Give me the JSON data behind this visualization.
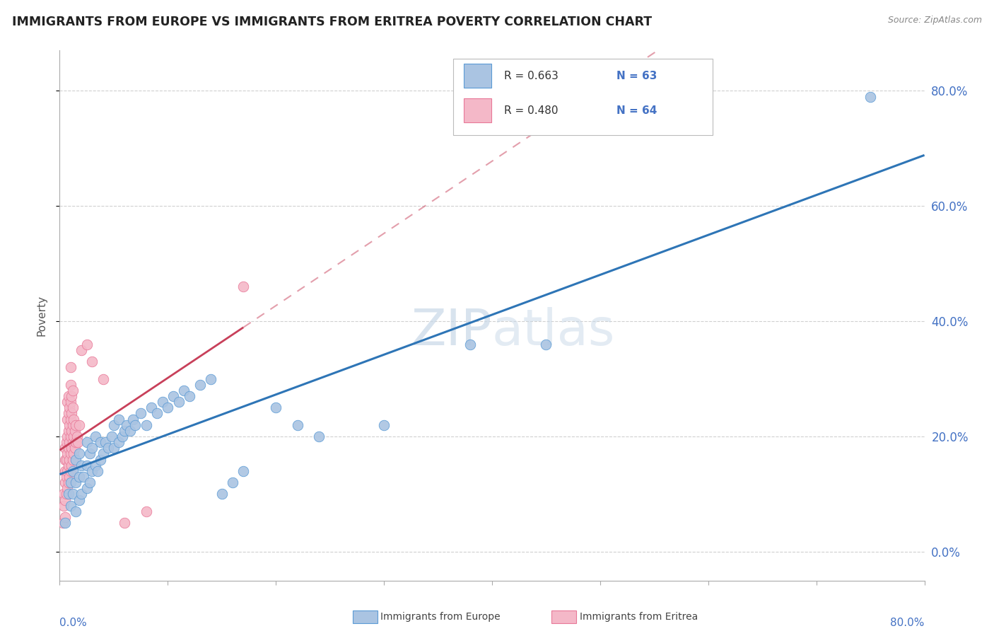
{
  "title": "IMMIGRANTS FROM EUROPE VS IMMIGRANTS FROM ERITREA POVERTY CORRELATION CHART",
  "source": "Source: ZipAtlas.com",
  "ylabel": "Poverty",
  "legend_europe": "Immigrants from Europe",
  "legend_eritrea": "Immigrants from Eritrea",
  "europe_R": "R = 0.663",
  "europe_N": "N = 63",
  "eritrea_R": "R = 0.480",
  "eritrea_N": "N = 64",
  "europe_color": "#aac4e2",
  "europe_edge_color": "#5b9bd5",
  "europe_line_color": "#2e75b6",
  "eritrea_color": "#f4b8c8",
  "eritrea_edge_color": "#e87898",
  "eritrea_line_color": "#c8405a",
  "background_color": "#ffffff",
  "watermark_color": "#c8d8e8",
  "grid_color": "#d0d0d0",
  "right_axis_color": "#4472c4",
  "xlim": [
    0.0,
    0.8
  ],
  "ylim": [
    -0.05,
    0.87
  ],
  "yticks": [
    0.0,
    0.2,
    0.4,
    0.6,
    0.8
  ],
  "ytick_labels": [
    "0.0%",
    "20.0%",
    "40.0%",
    "60.0%",
    "80.0%"
  ],
  "europe_scatter": [
    [
      0.005,
      0.05
    ],
    [
      0.008,
      0.1
    ],
    [
      0.01,
      0.08
    ],
    [
      0.01,
      0.12
    ],
    [
      0.012,
      0.14
    ],
    [
      0.012,
      0.1
    ],
    [
      0.015,
      0.07
    ],
    [
      0.015,
      0.12
    ],
    [
      0.015,
      0.16
    ],
    [
      0.018,
      0.09
    ],
    [
      0.018,
      0.13
    ],
    [
      0.018,
      0.17
    ],
    [
      0.02,
      0.1
    ],
    [
      0.02,
      0.15
    ],
    [
      0.022,
      0.13
    ],
    [
      0.025,
      0.11
    ],
    [
      0.025,
      0.15
    ],
    [
      0.025,
      0.19
    ],
    [
      0.028,
      0.12
    ],
    [
      0.028,
      0.17
    ],
    [
      0.03,
      0.14
    ],
    [
      0.03,
      0.18
    ],
    [
      0.033,
      0.15
    ],
    [
      0.033,
      0.2
    ],
    [
      0.035,
      0.14
    ],
    [
      0.038,
      0.16
    ],
    [
      0.038,
      0.19
    ],
    [
      0.04,
      0.17
    ],
    [
      0.042,
      0.19
    ],
    [
      0.045,
      0.18
    ],
    [
      0.048,
      0.2
    ],
    [
      0.05,
      0.18
    ],
    [
      0.05,
      0.22
    ],
    [
      0.055,
      0.19
    ],
    [
      0.055,
      0.23
    ],
    [
      0.058,
      0.2
    ],
    [
      0.06,
      0.21
    ],
    [
      0.062,
      0.22
    ],
    [
      0.065,
      0.21
    ],
    [
      0.068,
      0.23
    ],
    [
      0.07,
      0.22
    ],
    [
      0.075,
      0.24
    ],
    [
      0.08,
      0.22
    ],
    [
      0.085,
      0.25
    ],
    [
      0.09,
      0.24
    ],
    [
      0.095,
      0.26
    ],
    [
      0.1,
      0.25
    ],
    [
      0.105,
      0.27
    ],
    [
      0.11,
      0.26
    ],
    [
      0.115,
      0.28
    ],
    [
      0.12,
      0.27
    ],
    [
      0.13,
      0.29
    ],
    [
      0.14,
      0.3
    ],
    [
      0.15,
      0.1
    ],
    [
      0.16,
      0.12
    ],
    [
      0.17,
      0.14
    ],
    [
      0.2,
      0.25
    ],
    [
      0.22,
      0.22
    ],
    [
      0.24,
      0.2
    ],
    [
      0.3,
      0.22
    ],
    [
      0.38,
      0.36
    ],
    [
      0.45,
      0.36
    ],
    [
      0.75,
      0.79
    ]
  ],
  "eritrea_scatter": [
    [
      0.003,
      0.05
    ],
    [
      0.004,
      0.08
    ],
    [
      0.004,
      0.1
    ],
    [
      0.005,
      0.06
    ],
    [
      0.005,
      0.09
    ],
    [
      0.005,
      0.12
    ],
    [
      0.005,
      0.14
    ],
    [
      0.005,
      0.16
    ],
    [
      0.005,
      0.18
    ],
    [
      0.006,
      0.1
    ],
    [
      0.006,
      0.13
    ],
    [
      0.006,
      0.16
    ],
    [
      0.006,
      0.19
    ],
    [
      0.007,
      0.11
    ],
    [
      0.007,
      0.14
    ],
    [
      0.007,
      0.17
    ],
    [
      0.007,
      0.2
    ],
    [
      0.007,
      0.23
    ],
    [
      0.007,
      0.26
    ],
    [
      0.008,
      0.12
    ],
    [
      0.008,
      0.15
    ],
    [
      0.008,
      0.18
    ],
    [
      0.008,
      0.21
    ],
    [
      0.008,
      0.24
    ],
    [
      0.008,
      0.27
    ],
    [
      0.009,
      0.13
    ],
    [
      0.009,
      0.16
    ],
    [
      0.009,
      0.19
    ],
    [
      0.009,
      0.22
    ],
    [
      0.009,
      0.25
    ],
    [
      0.01,
      0.14
    ],
    [
      0.01,
      0.17
    ],
    [
      0.01,
      0.2
    ],
    [
      0.01,
      0.23
    ],
    [
      0.01,
      0.26
    ],
    [
      0.01,
      0.29
    ],
    [
      0.01,
      0.32
    ],
    [
      0.011,
      0.15
    ],
    [
      0.011,
      0.18
    ],
    [
      0.011,
      0.21
    ],
    [
      0.011,
      0.24
    ],
    [
      0.011,
      0.27
    ],
    [
      0.012,
      0.16
    ],
    [
      0.012,
      0.19
    ],
    [
      0.012,
      0.22
    ],
    [
      0.012,
      0.25
    ],
    [
      0.012,
      0.28
    ],
    [
      0.013,
      0.17
    ],
    [
      0.013,
      0.2
    ],
    [
      0.013,
      0.23
    ],
    [
      0.014,
      0.18
    ],
    [
      0.014,
      0.21
    ],
    [
      0.015,
      0.19
    ],
    [
      0.015,
      0.22
    ],
    [
      0.016,
      0.2
    ],
    [
      0.017,
      0.19
    ],
    [
      0.018,
      0.22
    ],
    [
      0.02,
      0.35
    ],
    [
      0.025,
      0.36
    ],
    [
      0.03,
      0.33
    ],
    [
      0.04,
      0.3
    ],
    [
      0.06,
      0.05
    ],
    [
      0.08,
      0.07
    ],
    [
      0.17,
      0.46
    ]
  ]
}
